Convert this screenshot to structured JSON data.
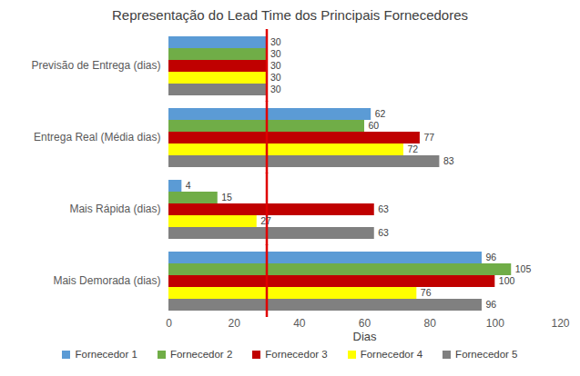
{
  "chart_data": {
    "type": "bar",
    "orientation": "horizontal",
    "title": "Representação do Lead Time dos Principais Fornecedores",
    "x_label": "Dias",
    "categories": [
      "Previsão de Entrega (dias)",
      "Entrega Real (Média dias)",
      "Mais Rápida (dias)",
      "Mais Demorada (dias)"
    ],
    "series": [
      {
        "name": "Fornecedor 1",
        "color": "#5b9bd5",
        "values": [
          30,
          62,
          4,
          96
        ]
      },
      {
        "name": "Fornecedor 2",
        "color": "#70ad47",
        "values": [
          30,
          60,
          15,
          105
        ]
      },
      {
        "name": "Fornecedor 3",
        "color": "#c00000",
        "values": [
          30,
          77,
          63,
          100
        ]
      },
      {
        "name": "Fornecedor 4",
        "color": "#ffff00",
        "values": [
          30,
          72,
          27,
          76
        ]
      },
      {
        "name": "Fornecedor 5",
        "color": "#808080",
        "values": [
          30,
          83,
          63,
          96
        ]
      }
    ],
    "xlim": [
      0,
      120
    ],
    "xticks": [
      0,
      20,
      40,
      60,
      80,
      100,
      120
    ],
    "reference_line": 30,
    "data_labels": true,
    "grid": false,
    "legend": "bottom"
  }
}
